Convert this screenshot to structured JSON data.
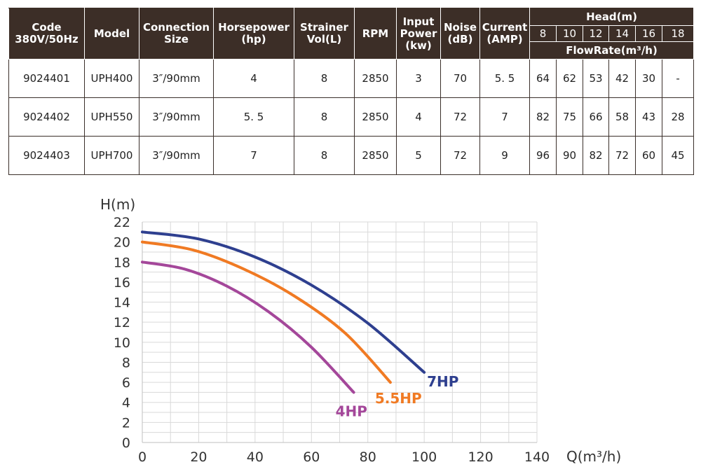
{
  "table": {
    "headers": {
      "code": [
        "Code",
        "380V/50Hz"
      ],
      "model": "Model",
      "connection": [
        "Connection",
        "Size"
      ],
      "horsepower": [
        "Horsepower",
        "(hp)"
      ],
      "strainer": [
        "Strainer",
        "Vol(L)"
      ],
      "rpm": "RPM",
      "input_power": [
        "Input",
        "Power",
        "(kw)"
      ],
      "noise": [
        "Noise",
        "(dB)"
      ],
      "current": [
        "Current",
        "(AMP)"
      ],
      "head": "Head(m)",
      "head_values": [
        "8",
        "10",
        "12",
        "14",
        "16",
        "18"
      ],
      "flowrate": "FlowRate(m³/h)"
    },
    "rows": [
      {
        "code": "9024401",
        "model": "UPH400",
        "connection": "3″/90mm",
        "hp": "4",
        "strainer": "8",
        "rpm": "2850",
        "power": "3",
        "noise": "70",
        "current": "5. 5",
        "flows": [
          "64",
          "62",
          "53",
          "42",
          "30",
          "-"
        ]
      },
      {
        "code": "9024402",
        "model": "UPH550",
        "connection": "3″/90mm",
        "hp": "5. 5",
        "strainer": "8",
        "rpm": "2850",
        "power": "4",
        "noise": "72",
        "current": "7",
        "flows": [
          "82",
          "75",
          "66",
          "58",
          "43",
          "28"
        ]
      },
      {
        "code": "9024403",
        "model": "UPH700",
        "connection": "3″/90mm",
        "hp": "7",
        "strainer": "8",
        "rpm": "2850",
        "power": "5",
        "noise": "72",
        "current": "9",
        "flows": [
          "96",
          "90",
          "82",
          "72",
          "60",
          "45"
        ]
      }
    ]
  },
  "chart_data": {
    "type": "line",
    "xlabel": "Q(m³/h)",
    "ylabel": "H(m)",
    "xlim": [
      0,
      140
    ],
    "ylim": [
      0,
      22
    ],
    "xticks": [
      "0",
      "20",
      "40",
      "60",
      "80",
      "100",
      "120",
      "140"
    ],
    "yticks": [
      "0",
      "2",
      "4",
      "6",
      "8",
      "10",
      "12",
      "14",
      "16",
      "18",
      "20",
      "22"
    ],
    "grid": true,
    "series": [
      {
        "name": "4HP",
        "color": "#a4479a",
        "x": [
          0,
          15,
          30,
          45,
          60,
          75
        ],
        "y": [
          18,
          17.3,
          15.6,
          13,
          9.5,
          5
        ]
      },
      {
        "name": "5.5HP",
        "color": "#f07a23",
        "x": [
          0,
          18,
          36,
          54,
          72,
          88
        ],
        "y": [
          20,
          19.2,
          17.3,
          14.6,
          10.9,
          6
        ]
      },
      {
        "name": "7HP",
        "color": "#2e3f8f",
        "x": [
          0,
          20,
          40,
          60,
          80,
          100
        ],
        "y": [
          21,
          20.3,
          18.5,
          15.7,
          11.9,
          7
        ]
      }
    ]
  }
}
